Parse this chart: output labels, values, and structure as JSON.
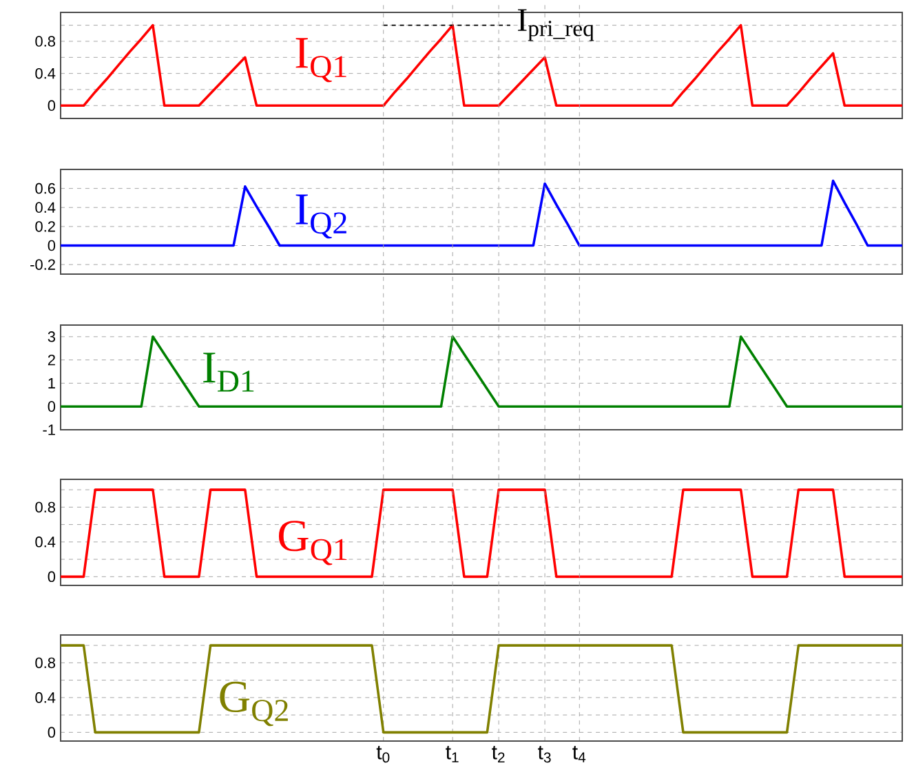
{
  "chart_data": [
    {
      "type": "line",
      "categories": [
        null,
        null,
        null,
        null,
        null,
        null,
        null,
        null,
        null,
        null,
        null,
        null,
        null,
        null,
        null,
        null,
        null,
        null,
        null,
        null,
        null,
        null,
        null,
        null,
        null,
        null,
        null,
        null,
        null,
        null,
        null,
        null,
        null,
        null,
        null,
        null,
        null,
        null,
        null,
        null,
        null,
        null,
        null,
        null,
        null,
        null,
        null,
        null,
        null,
        null,
        null,
        null,
        null,
        null,
        null,
        null,
        null,
        null,
        null,
        null,
        null,
        null,
        null,
        null,
        null,
        null,
        null,
        null,
        null,
        null,
        null,
        null,
        null,
        null
      ],
      "ylim": [
        -0.16,
        1.16
      ],
      "yticks": [
        0,
        {
          "value": 0.2,
          "label": null
        },
        0.4,
        {
          "value": 0.6,
          "label": null
        },
        0.8,
        {
          "value": 1.0,
          "label": null
        }
      ],
      "grid": "y",
      "tick_labels": "y",
      "line_style": "solid",
      "series": [
        {
          "name": "I$_{Q1}$",
          "color": "#ff0000",
          "values": [
            0,
            0,
            0,
            0.17,
            0.33,
            0.5,
            0.67,
            0.83,
            1,
            0,
            0,
            0,
            0,
            0.15,
            0.3,
            0.45,
            0.6,
            0,
            0,
            0,
            0,
            0,
            0,
            0,
            0,
            0,
            0,
            0,
            0,
            0.17,
            0.33,
            0.5,
            0.67,
            0.83,
            1,
            0,
            0,
            0,
            0,
            0.15,
            0.3,
            0.45,
            0.6,
            0,
            0,
            0,
            0,
            0,
            0,
            0,
            0,
            0,
            0,
            0,
            0.17,
            0.33,
            0.5,
            0.67,
            0.83,
            1,
            0,
            0,
            0,
            0,
            0.16,
            0.33,
            0.49,
            0.65,
            0,
            0,
            0,
            0,
            0,
            0
          ]
        },
        {
          "type": "line",
          "color": "#000000",
          "line_style": "dashed",
          "values": [
            null,
            null,
            null,
            null,
            null,
            null,
            null,
            null,
            null,
            null,
            null,
            null,
            null,
            null,
            null,
            null,
            null,
            null,
            null,
            null,
            null,
            null,
            null,
            null,
            null,
            null,
            null,
            null,
            1,
            1,
            1,
            1,
            1,
            1,
            1,
            1,
            1,
            1,
            1,
            1,
            null,
            null,
            null,
            null,
            null,
            null,
            null,
            null,
            null,
            null,
            null,
            null,
            null,
            null,
            null,
            null,
            null,
            null,
            null,
            null,
            null,
            null,
            null,
            null,
            null,
            null,
            null,
            null,
            null,
            null,
            null,
            null,
            null,
            null
          ]
        }
      ],
      "annotations": [
        "I$_{pri_req}$"
      ]
    },
    {
      "type": "line",
      "categories": [
        null,
        null,
        null,
        null,
        null,
        null,
        null,
        null,
        null,
        null,
        null,
        null,
        null,
        null,
        null,
        null,
        null,
        null,
        null,
        null,
        null,
        null,
        null,
        null,
        null,
        null,
        null,
        null,
        null,
        null,
        null,
        null,
        null,
        null,
        null,
        null,
        null,
        null,
        null,
        null,
        null,
        null,
        null,
        null,
        null,
        null,
        null,
        null,
        null,
        null,
        null,
        null,
        null,
        null,
        null,
        null,
        null,
        null,
        null,
        null,
        null,
        null,
        null,
        null,
        null,
        null,
        null,
        null,
        null,
        null,
        null,
        null,
        null,
        null
      ],
      "ylim": [
        -0.3,
        0.8
      ],
      "yticks": [
        -0.2,
        0,
        0.2,
        0.4,
        0.6
      ],
      "grid": "y",
      "tick_labels": "y",
      "line_style": "solid",
      "series": [
        {
          "name": "I$_{Q2}$",
          "color": "#0000ff",
          "values": [
            0,
            0,
            0,
            0,
            0,
            0,
            0,
            0,
            0,
            0,
            0,
            0,
            0,
            0,
            0,
            0,
            0.62,
            0.41,
            0.21,
            0,
            0,
            0,
            0,
            0,
            0,
            0,
            0,
            0,
            0,
            0,
            0,
            0,
            0,
            0,
            0,
            0,
            0,
            0,
            0,
            0,
            0,
            0,
            0.65,
            0.43,
            0.22,
            0,
            0,
            0,
            0,
            0,
            0,
            0,
            0,
            0,
            0,
            0,
            0,
            0,
            0,
            0,
            0,
            0,
            0,
            0,
            0,
            0,
            0,
            0.68,
            0.45,
            0.23,
            0,
            0,
            0,
            0
          ]
        }
      ]
    },
    {
      "type": "line",
      "categories": [
        null,
        null,
        null,
        null,
        null,
        null,
        null,
        null,
        null,
        null,
        null,
        null,
        null,
        null,
        null,
        null,
        null,
        null,
        null,
        null,
        null,
        null,
        null,
        null,
        null,
        null,
        null,
        null,
        null,
        null,
        null,
        null,
        null,
        null,
        null,
        null,
        null,
        null,
        null,
        null,
        null,
        null,
        null,
        null,
        null,
        null,
        null,
        null,
        null,
        null,
        null,
        null,
        null,
        null,
        null,
        null,
        null,
        null,
        null,
        null,
        null,
        null,
        null,
        null,
        null,
        null,
        null,
        null,
        null,
        null,
        null,
        null,
        null,
        null
      ],
      "ylim": [
        -1,
        3.5
      ],
      "yticks": [
        -1,
        0,
        1,
        2,
        3
      ],
      "grid": "y",
      "tick_labels": "y",
      "line_style": "solid",
      "series": [
        {
          "name": "I$_{D1}$",
          "color": "#008000",
          "values": [
            0,
            0,
            0,
            0,
            0,
            0,
            0,
            0,
            3,
            2.25,
            1.5,
            0.75,
            0,
            0,
            0,
            0,
            0,
            0,
            0,
            0,
            0,
            0,
            0,
            0,
            0,
            0,
            0,
            0,
            0,
            0,
            0,
            0,
            0,
            0,
            3,
            2.25,
            1.5,
            0.75,
            0,
            0,
            0,
            0,
            0,
            0,
            0,
            0,
            0,
            0,
            0,
            0,
            0,
            0,
            0,
            0,
            0,
            0,
            0,
            0,
            0,
            3,
            2.25,
            1.5,
            0.75,
            0,
            0,
            0,
            0,
            0,
            0,
            0,
            0,
            0,
            0,
            0
          ]
        }
      ]
    },
    {
      "type": "line",
      "categories": [
        null,
        null,
        null,
        null,
        null,
        null,
        null,
        null,
        null,
        null,
        null,
        null,
        null,
        null,
        null,
        null,
        null,
        null,
        null,
        null,
        null,
        null,
        null,
        null,
        null,
        null,
        null,
        null,
        null,
        null,
        null,
        null,
        null,
        null,
        null,
        null,
        null,
        null,
        null,
        null,
        null,
        null,
        null,
        null,
        null,
        null,
        null,
        null,
        null,
        null,
        null,
        null,
        null,
        null,
        null,
        null,
        null,
        null,
        null,
        null,
        null,
        null,
        null,
        null,
        null,
        null,
        null,
        null,
        null,
        null,
        null,
        null,
        null,
        null
      ],
      "ylim": [
        -0.1,
        1.12
      ],
      "yticks": [
        0,
        {
          "value": 0.2,
          "label": null
        },
        0.4,
        {
          "value": 0.6,
          "label": null
        },
        0.8,
        {
          "value": 1.0,
          "label": null
        }
      ],
      "grid": "y",
      "tick_labels": "y",
      "line_style": "solid",
      "series": [
        {
          "name": "G$_{Q1}$",
          "color": "#ff0000",
          "values": [
            0,
            0,
            0,
            1,
            1,
            1,
            1,
            1,
            1,
            0,
            0,
            0,
            0,
            1,
            1,
            1,
            1,
            0,
            0,
            0,
            0,
            0,
            0,
            0,
            0,
            0,
            0,
            0,
            1,
            1,
            1,
            1,
            1,
            1,
            1,
            0,
            0,
            0,
            1,
            1,
            1,
            1,
            1,
            0,
            0,
            0,
            0,
            0,
            0,
            0,
            0,
            0,
            0,
            0,
            1,
            1,
            1,
            1,
            1,
            1,
            0,
            0,
            0,
            0,
            1,
            1,
            1,
            1,
            0,
            0,
            0,
            0,
            0,
            0
          ]
        }
      ]
    },
    {
      "type": "line",
      "categories": [
        null,
        null,
        null,
        null,
        null,
        null,
        null,
        null,
        null,
        null,
        null,
        null,
        null,
        null,
        null,
        null,
        null,
        null,
        null,
        null,
        null,
        null,
        null,
        null,
        null,
        null,
        null,
        null,
        "t$_{0}$",
        null,
        null,
        null,
        null,
        null,
        "t$_{1}$",
        null,
        null,
        null,
        "t$_{2}$",
        null,
        null,
        null,
        "t$_{3}$",
        null,
        null,
        "t$_{4}$",
        null,
        null,
        null,
        null,
        null,
        null,
        null,
        null,
        null,
        null,
        null,
        null,
        null,
        null,
        null,
        null,
        null,
        null,
        null,
        null,
        null,
        null,
        null,
        null,
        null,
        null,
        null,
        null
      ],
      "ylim": [
        -0.1,
        1.12
      ],
      "yticks": [
        0,
        {
          "value": 0.2,
          "label": null
        },
        0.4,
        {
          "value": 0.6,
          "label": null
        },
        0.8,
        {
          "value": 1.0,
          "label": null
        }
      ],
      "grid": true,
      "line_style": "solid",
      "series": [
        {
          "name": "G$_{Q2}$",
          "color": "#808000",
          "values": [
            1,
            1,
            1,
            0,
            0,
            0,
            0,
            0,
            0,
            0,
            0,
            0,
            0,
            1,
            1,
            1,
            1,
            1,
            1,
            1,
            1,
            1,
            1,
            1,
            1,
            1,
            1,
            1,
            0,
            0,
            0,
            0,
            0,
            0,
            0,
            0,
            0,
            0,
            1,
            1,
            1,
            1,
            1,
            1,
            1,
            1,
            1,
            1,
            1,
            1,
            1,
            1,
            1,
            1,
            0,
            0,
            0,
            0,
            0,
            0,
            0,
            0,
            0,
            0,
            1,
            1,
            1,
            1,
            1,
            1,
            1,
            1,
            1,
            1
          ]
        }
      ]
    }
  ]
}
